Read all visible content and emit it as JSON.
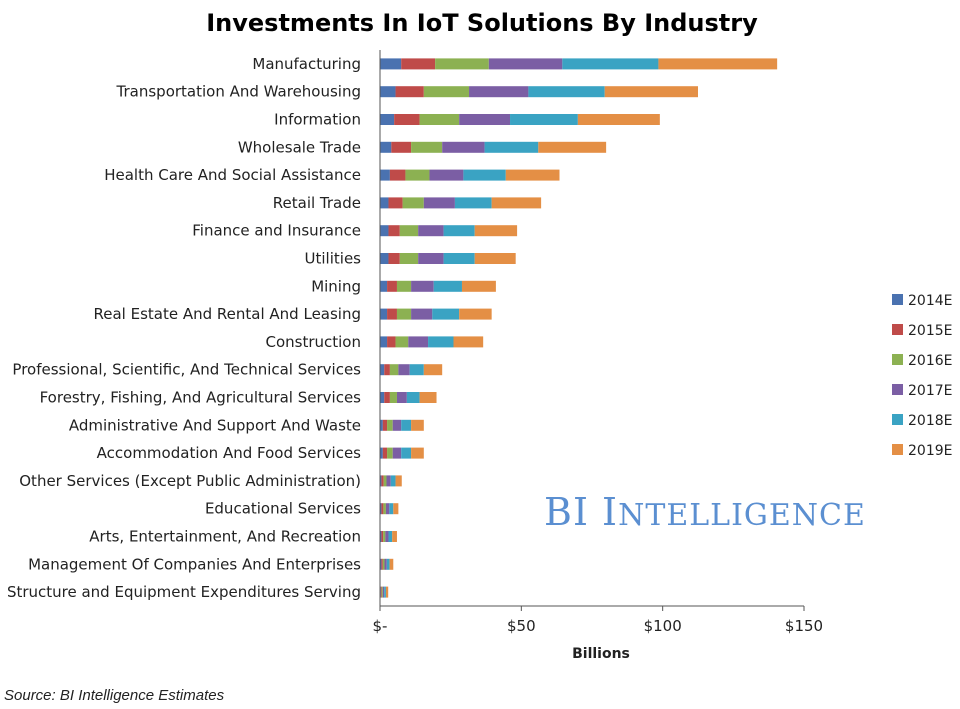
{
  "chart_data": {
    "type": "bar",
    "orientation": "horizontal",
    "stacked": true,
    "title": "Investments In IoT Solutions By Industry",
    "xlabel": "Billions",
    "ylabel": "",
    "xlim": [
      0,
      150
    ],
    "x_ticks": [
      0,
      50,
      100,
      150
    ],
    "x_tick_labels": [
      "$-",
      "$50",
      "$100",
      "$150"
    ],
    "grid": false,
    "legend_position": "right",
    "categories": [
      "Manufacturing",
      "Transportation And Warehousing",
      "Information",
      "Wholesale Trade",
      "Health Care And Social Assistance",
      "Retail Trade",
      "Finance and Insurance",
      "Utilities",
      "Mining",
      "Real Estate And Rental And Leasing",
      "Construction",
      "Professional, Scientific, And Technical Services",
      "Forestry, Fishing, And Agricultural Services",
      "Administrative And Support And Waste",
      "Accommodation And Food Services",
      "Other Services (Except Public Administration)",
      "Educational Services",
      "Arts, Entertainment, And Recreation",
      "Management Of Companies And Enterprises",
      "Structure and Equipment Expenditures Serving"
    ],
    "series": [
      {
        "name": "2014E",
        "color": "#4a72b0",
        "values": [
          7.5,
          5.5,
          5,
          4,
          3.5,
          3,
          3,
          3,
          2.5,
          2.5,
          2.5,
          1.5,
          1.5,
          1,
          1,
          0.5,
          0.5,
          0.5,
          0.5,
          0.3
        ]
      },
      {
        "name": "2015E",
        "color": "#bf4b49",
        "values": [
          12,
          10,
          9,
          7,
          5.5,
          5,
          4,
          4,
          3.5,
          3.5,
          3,
          2,
          2,
          1.5,
          1.5,
          0.8,
          0.7,
          0.6,
          0.5,
          0.3
        ]
      },
      {
        "name": "2016E",
        "color": "#8cb152",
        "values": [
          19,
          16,
          14,
          11,
          8.5,
          7.5,
          6.5,
          6.5,
          5,
          5,
          4.5,
          3,
          2.5,
          2,
          2,
          1,
          0.9,
          0.8,
          0.6,
          0.4
        ]
      },
      {
        "name": "2017E",
        "color": "#7b5ea4",
        "values": [
          26,
          21,
          18,
          15,
          12,
          11,
          9,
          9,
          8,
          7.5,
          7,
          4,
          3.5,
          3,
          3,
          1.5,
          1.2,
          1.1,
          0.8,
          0.5
        ]
      },
      {
        "name": "2018E",
        "color": "#3aa3c3",
        "values": [
          34,
          27,
          24,
          19,
          15,
          13,
          11,
          11,
          10,
          9.5,
          9,
          5,
          4.5,
          3.5,
          3.5,
          1.7,
          1.4,
          1.3,
          1,
          0.6
        ]
      },
      {
        "name": "2019E",
        "color": "#e48f45",
        "values": [
          42,
          33,
          29,
          24,
          19,
          17.5,
          15,
          14.5,
          12,
          11.5,
          10.5,
          6.5,
          6,
          4.5,
          4.5,
          2.2,
          1.8,
          1.7,
          1.3,
          0.8
        ]
      }
    ]
  },
  "watermark": "BI Intelligence",
  "source": "Source: BI Intelligence Estimates"
}
